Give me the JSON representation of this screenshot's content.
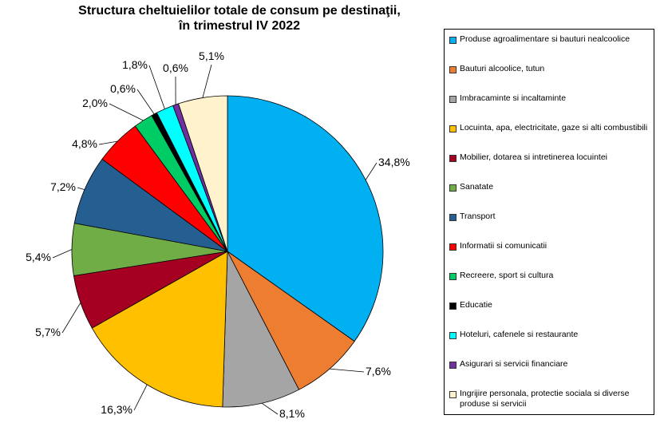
{
  "chart_data": {
    "type": "pie",
    "title": [
      "Structura cheltuielilor totale de consum pe destinaţii,",
      "în trimestrul IV 2022"
    ],
    "slices": [
      {
        "name": "Produse agroalimentare si bauturi nealcoolice",
        "value": 34.8,
        "label": "34,8%",
        "color": "#00B0F0"
      },
      {
        "name": "Bauturi alcoolice, tutun",
        "value": 7.6,
        "label": "7,6%",
        "color": "#ED7D31"
      },
      {
        "name": "Imbracaminte si incaltaminte",
        "value": 8.1,
        "label": "8,1%",
        "color": "#A5A5A5"
      },
      {
        "name": "Locuinta, apa, electricitate, gaze si alti combustibili",
        "value": 16.3,
        "label": "16,3%",
        "color": "#FFC000"
      },
      {
        "name": "Mobilier, dotarea si intretinerea locuintei",
        "value": 5.7,
        "label": "5,7%",
        "color": "#A50021"
      },
      {
        "name": "Sanatate",
        "value": 5.4,
        "label": "5,4%",
        "color": "#70AD47"
      },
      {
        "name": "Transport",
        "value": 7.2,
        "label": "7,2%",
        "color": "#255E91"
      },
      {
        "name": "Informatii si comunicatii",
        "value": 4.8,
        "label": "4,8%",
        "color": "#FF0000"
      },
      {
        "name": "Recreere, sport si cultura",
        "value": 2.0,
        "label": "2,0%",
        "color": "#00CC66"
      },
      {
        "name": "Educatie",
        "value": 0.6,
        "label": "0,6%",
        "color": "#000000"
      },
      {
        "name": "Hoteluri, cafenele si restaurante",
        "value": 1.8,
        "label": "1,8%",
        "color": "#00FFFF"
      },
      {
        "name": "Asigurari si servicii financiare",
        "value": 0.6,
        "label": "0,6%",
        "color": "#7030A0"
      },
      {
        "name": "Ingrijire personala, protectie sociala si diverse produse si servicii",
        "value": 5.1,
        "label": "5,1%",
        "color": "#FFF2CC"
      }
    ],
    "legend_position": "right"
  }
}
